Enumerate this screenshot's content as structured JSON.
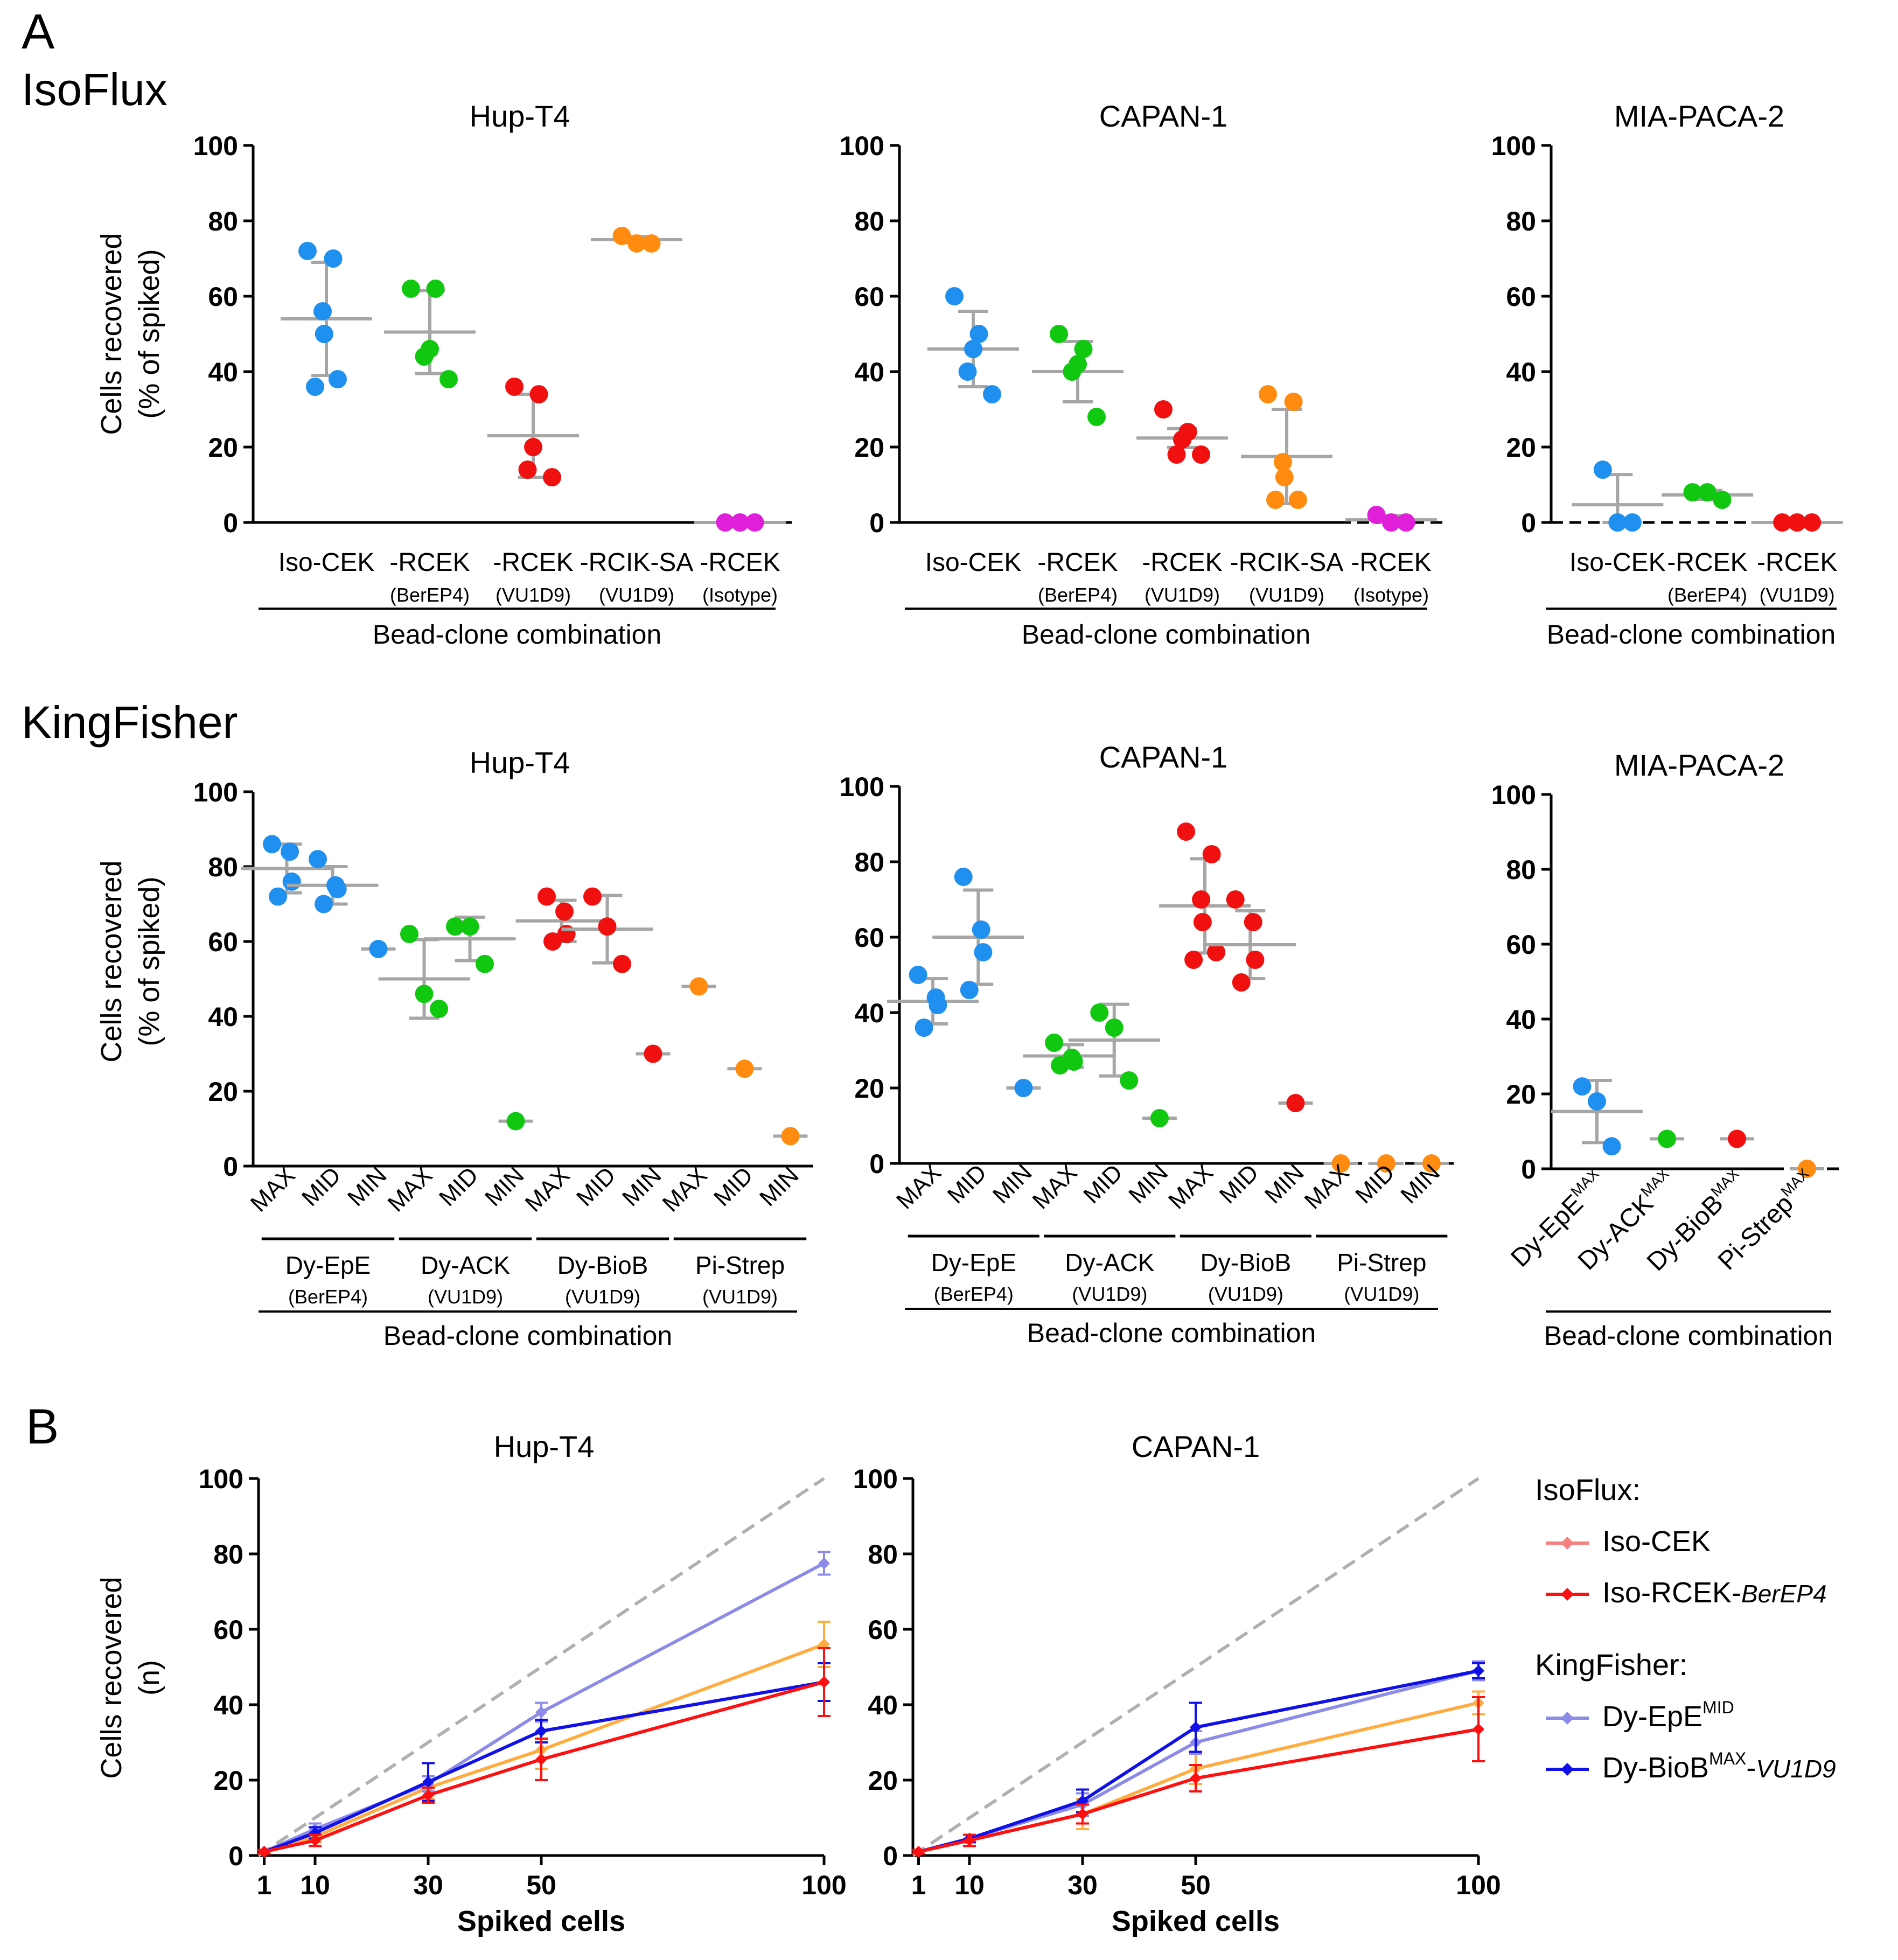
{
  "labels": {
    "panel_a": "A",
    "panel_b": "B",
    "isoflux_title": "IsoFlux",
    "kingfisher_title": "KingFisher",
    "ylabel_a_line1": "Cells recovered",
    "ylabel_a_line2": "(% of spiked)",
    "ylabel_b_line1": "Cells recovered",
    "ylabel_b_line2": "(n)",
    "bead_combo": "Bead-clone combination",
    "spiked_cells": "Spiked cells"
  },
  "colors": {
    "blue": "#1f8ff0",
    "green": "#11c811",
    "red": "#f01010",
    "orange": "#ff8c10",
    "magenta": "#e020d8",
    "gray": "#a6a6a6",
    "isoCEK": "#f58080",
    "isoRCEK": "#ff1010",
    "dyEpE": "#8c8ce8",
    "dyBioB": "#1010e8",
    "orangeLine": "#ffac40"
  },
  "chart_data": [
    {
      "id": "iso-hup",
      "type": "scatter",
      "title": "Hup-T4",
      "ylim": [
        0,
        100
      ],
      "yticks": [
        0,
        20,
        40,
        60,
        80,
        100
      ],
      "group_labels": [
        {
          "main": "Iso-CEK",
          "sub": ""
        },
        {
          "main": "-RCEK",
          "sub": "(BerEP4)"
        },
        {
          "main": "-RCEK",
          "sub": "(VU1D9)"
        },
        {
          "main": "-RCIK-SA",
          "sub": "(VU1D9)"
        },
        {
          "main": "-RCEK",
          "sub": "(Isotype)"
        }
      ],
      "xlabel": "Bead-clone combination",
      "groups": [
        {
          "color": "blue",
          "points": [
            72,
            70,
            56,
            50,
            38,
            36
          ],
          "mean": 54,
          "sd": 15
        },
        {
          "color": "green",
          "points": [
            62,
            62,
            46,
            44,
            38
          ],
          "mean": 50.5,
          "sd": 11
        },
        {
          "color": "red",
          "points": [
            36,
            34,
            20,
            14,
            12
          ],
          "mean": 23,
          "sd": 11
        },
        {
          "color": "orange",
          "points": [
            76,
            74,
            74
          ],
          "mean": 75,
          "sd": 0.8
        },
        {
          "color": "magenta",
          "points": [
            0,
            0,
            0
          ],
          "mean": 0,
          "sd": 0
        }
      ]
    },
    {
      "id": "iso-capan",
      "type": "scatter",
      "title": "CAPAN-1",
      "ylim": [
        0,
        100
      ],
      "yticks": [
        0,
        20,
        40,
        60,
        80,
        100
      ],
      "group_labels": [
        {
          "main": "Iso-CEK",
          "sub": ""
        },
        {
          "main": "-RCEK",
          "sub": "(BerEP4)"
        },
        {
          "main": "-RCEK",
          "sub": "(VU1D9)"
        },
        {
          "main": "-RCIK-SA",
          "sub": "(VU1D9)"
        },
        {
          "main": "-RCEK",
          "sub": "(Isotype)"
        }
      ],
      "xlabel": "Bead-clone combination",
      "groups": [
        {
          "color": "blue",
          "points": [
            60,
            50,
            46,
            40,
            34
          ],
          "mean": 46,
          "sd": 10
        },
        {
          "color": "green",
          "points": [
            50,
            46,
            42,
            40,
            28
          ],
          "mean": 40,
          "sd": 8
        },
        {
          "color": "red",
          "points": [
            30,
            24,
            22,
            18,
            18
          ],
          "mean": 22.4,
          "sd": 2.5
        },
        {
          "color": "orange",
          "points": [
            34,
            32,
            16,
            12,
            6,
            6
          ],
          "mean": 17.5,
          "sd": 12.5
        },
        {
          "color": "magenta",
          "points": [
            2,
            0,
            0
          ],
          "mean": 0.7,
          "sd": 1.1
        }
      ]
    },
    {
      "id": "iso-mia",
      "type": "scatter",
      "title": "MIA-PACA-2",
      "ylim": [
        0,
        100
      ],
      "yticks": [
        0,
        20,
        40,
        60,
        80,
        100
      ],
      "group_labels": [
        {
          "main": "Iso-CEK",
          "sub": ""
        },
        {
          "main": "-RCEK",
          "sub": "(BerEP4)"
        },
        {
          "main": "-RCEK",
          "sub": "(VU1D9)"
        }
      ],
      "xlabel": "Bead-clone combination",
      "groups": [
        {
          "color": "blue",
          "points": [
            14,
            0,
            0
          ],
          "mean": 4.7,
          "sd": 8
        },
        {
          "color": "green",
          "points": [
            8,
            8,
            6
          ],
          "mean": 7.3,
          "sd": 1.2
        },
        {
          "color": "red",
          "points": [
            0,
            0,
            0
          ],
          "mean": 0,
          "sd": 0
        }
      ]
    },
    {
      "id": "kf-hup",
      "type": "scatter",
      "title": "Hup-T4",
      "ylim": [
        0,
        100
      ],
      "yticks": [
        0,
        20,
        40,
        60,
        80,
        100
      ],
      "tick_labels": [
        "MAX",
        "MID",
        "MIN",
        "MAX",
        "MID",
        "MIN",
        "MAX",
        "MID",
        "MIN",
        "MAX",
        "MID",
        "MIN"
      ],
      "bead_groups": [
        {
          "main": "Dy-EpE",
          "sub": "(BerEP4)"
        },
        {
          "main": "Dy-ACK",
          "sub": "(VU1D9)"
        },
        {
          "main": "Dy-BioB",
          "sub": "(VU1D9)"
        },
        {
          "main": "Pi-Strep",
          "sub": "(VU1D9)"
        }
      ],
      "xlabel": "Bead-clone combination",
      "groups": [
        {
          "color": "blue",
          "points": [
            86,
            84,
            76,
            72
          ],
          "mean": 79.5,
          "sd": 6.5
        },
        {
          "color": "blue",
          "points": [
            82,
            75,
            74,
            70
          ],
          "mean": 75,
          "sd": 5
        },
        {
          "color": "blue",
          "points": [
            58
          ],
          "mean": 58,
          "sd": 0
        },
        {
          "color": "green",
          "points": [
            62,
            46,
            42
          ],
          "mean": 50,
          "sd": 10.5
        },
        {
          "color": "green",
          "points": [
            64,
            64,
            54
          ],
          "mean": 60.7,
          "sd": 5.8
        },
        {
          "color": "green",
          "points": [
            12
          ],
          "mean": 12,
          "sd": 0
        },
        {
          "color": "red",
          "points": [
            72,
            68,
            62,
            60
          ],
          "mean": 65.5,
          "sd": 5.5
        },
        {
          "color": "red",
          "points": [
            72,
            64,
            54
          ],
          "mean": 63.3,
          "sd": 9
        },
        {
          "color": "red",
          "points": [
            30
          ],
          "mean": 30,
          "sd": 0
        },
        {
          "color": "orange",
          "points": [
            48
          ],
          "mean": 48,
          "sd": 0
        },
        {
          "color": "orange",
          "points": [
            26
          ],
          "mean": 26,
          "sd": 0
        },
        {
          "color": "orange",
          "points": [
            8
          ],
          "mean": 8,
          "sd": 0
        }
      ]
    },
    {
      "id": "kf-capan",
      "type": "scatter",
      "title": "CAPAN-1",
      "ylim": [
        0,
        100
      ],
      "yticks": [
        0,
        20,
        40,
        60,
        80,
        100
      ],
      "tick_labels": [
        "MAX",
        "MID",
        "MIN",
        "MAX",
        "MID",
        "MIN",
        "MAX",
        "MID",
        "MIN",
        "MAX",
        "MID",
        "MIN"
      ],
      "bead_groups": [
        {
          "main": "Dy-EpE",
          "sub": "(BerEP4)"
        },
        {
          "main": "Dy-ACK",
          "sub": "(VU1D9)"
        },
        {
          "main": "Dy-BioB",
          "sub": "(VU1D9)"
        },
        {
          "main": "Pi-Strep",
          "sub": "(VU1D9)"
        }
      ],
      "xlabel": "Bead-clone combination",
      "groups": [
        {
          "color": "blue",
          "points": [
            50,
            44,
            42,
            36
          ],
          "mean": 43,
          "sd": 6
        },
        {
          "color": "blue",
          "points": [
            76,
            62,
            56,
            46
          ],
          "mean": 60,
          "sd": 12.5
        },
        {
          "color": "blue",
          "points": [
            20
          ],
          "mean": 20,
          "sd": 0
        },
        {
          "color": "green",
          "points": [
            32,
            28,
            27,
            26
          ],
          "mean": 28.5,
          "sd": 3
        },
        {
          "color": "green",
          "points": [
            40,
            36,
            22
          ],
          "mean": 32.7,
          "sd": 9.5
        },
        {
          "color": "green",
          "points": [
            12
          ],
          "mean": 12,
          "sd": 0
        },
        {
          "color": "red",
          "points": [
            88,
            82,
            70,
            64,
            56,
            54
          ],
          "mean": 68.3,
          "sd": 12.5
        },
        {
          "color": "red",
          "points": [
            70,
            64,
            54,
            48
          ],
          "mean": 58,
          "sd": 9
        },
        {
          "color": "red",
          "points": [
            16
          ],
          "mean": 16,
          "sd": 0
        },
        {
          "color": "orange",
          "points": [
            0
          ],
          "mean": 0,
          "sd": 0
        },
        {
          "color": "orange",
          "points": [
            0
          ],
          "mean": 0,
          "sd": 0
        },
        {
          "color": "orange",
          "points": [
            0
          ],
          "mean": 0,
          "sd": 0
        }
      ]
    },
    {
      "id": "kf-mia",
      "type": "scatter",
      "title": "MIA-PACA-2",
      "ylim": [
        0,
        100
      ],
      "yticks": [
        0,
        20,
        40,
        60,
        80,
        100
      ],
      "tick_labels": [
        {
          "main": "Dy-EpE",
          "sup": "MAX"
        },
        {
          "main": "Dy-ACK",
          "sup": "MAX"
        },
        {
          "main": "Dy-BioB",
          "sup": "MAX"
        },
        {
          "main": "Pi-Strep",
          "sup": "MAX"
        }
      ],
      "xlabel": "Bead-clone combination",
      "groups": [
        {
          "color": "blue",
          "points": [
            22,
            18,
            6
          ],
          "mean": 15.3,
          "sd": 8.3
        },
        {
          "color": "green",
          "points": [
            8
          ],
          "mean": 8,
          "sd": 0
        },
        {
          "color": "red",
          "points": [
            8
          ],
          "mean": 8,
          "sd": 0
        },
        {
          "color": "orange",
          "points": [
            0
          ],
          "mean": 0,
          "sd": 0
        }
      ]
    },
    {
      "id": "b-hup",
      "type": "line",
      "title": "Hup-T4",
      "xlabel": "Spiked cells",
      "ylabel": "Cells recovered (n)",
      "ylim": [
        0,
        100
      ],
      "yticks": [
        0,
        20,
        40,
        60,
        80,
        100
      ],
      "xlim": [
        0,
        100
      ],
      "xticks": [
        1,
        10,
        30,
        50,
        100
      ],
      "reference_line": [
        [
          0,
          0
        ],
        [
          100,
          100
        ]
      ],
      "series": [
        {
          "name": "orange",
          "color": "orangeLine",
          "x": [
            1,
            10,
            30,
            50,
            100
          ],
          "y": [
            1,
            5,
            18,
            28,
            56
          ],
          "err": [
            0.5,
            1.5,
            3,
            5,
            6
          ]
        },
        {
          "name": "Dy-EpE MID",
          "color": "dyEpE",
          "x": [
            1,
            10,
            30,
            50,
            100
          ],
          "y": [
            1,
            7,
            19,
            38,
            77.5
          ],
          "err": [
            0.5,
            1.5,
            2,
            2.5,
            3
          ]
        },
        {
          "name": "Dy-BioB MAX-VU1D9",
          "color": "dyBioB",
          "x": [
            1,
            10,
            30,
            50,
            100
          ],
          "y": [
            1,
            6,
            19.5,
            33,
            46
          ],
          "err": [
            0.5,
            1.5,
            5,
            3,
            5
          ]
        },
        {
          "name": "Iso-RCEK-BerEP4",
          "color": "isoRCEK",
          "x": [
            1,
            10,
            30,
            50,
            100
          ],
          "y": [
            1,
            4,
            16,
            25.5,
            46
          ],
          "err": [
            0.5,
            1.5,
            2,
            5.5,
            9
          ]
        }
      ]
    },
    {
      "id": "b-capan",
      "type": "line",
      "title": "CAPAN-1",
      "xlabel": "Spiked cells",
      "ylabel": "Cells recovered (n)",
      "ylim": [
        0,
        100
      ],
      "yticks": [
        0,
        20,
        40,
        60,
        80,
        100
      ],
      "xlim": [
        0,
        100
      ],
      "xticks": [
        1,
        10,
        30,
        50,
        100
      ],
      "reference_line": [
        [
          0,
          0
        ],
        [
          100,
          100
        ]
      ],
      "series": [
        {
          "name": "orange",
          "color": "orangeLine",
          "x": [
            1,
            10,
            30,
            50,
            100
          ],
          "y": [
            1,
            4,
            11,
            23,
            40.5
          ],
          "err": [
            0.5,
            1.5,
            4,
            4,
            3
          ]
        },
        {
          "name": "Dy-EpE MID",
          "color": "dyEpE",
          "x": [
            1,
            10,
            30,
            50,
            100
          ],
          "y": [
            1,
            4.5,
            13.5,
            30,
            49
          ],
          "err": [
            0.5,
            1,
            3,
            3,
            2.5
          ]
        },
        {
          "name": "Dy-BioB MAX-VU1D9",
          "color": "dyBioB",
          "x": [
            1,
            10,
            30,
            50,
            100
          ],
          "y": [
            1,
            4.5,
            14.5,
            34,
            49
          ],
          "err": [
            0.5,
            1,
            3,
            6.5,
            2
          ]
        },
        {
          "name": "Iso-RCEK-BerEP4",
          "color": "isoRCEK",
          "x": [
            1,
            10,
            30,
            50,
            100
          ],
          "y": [
            1,
            4,
            11,
            20.5,
            33.5
          ],
          "err": [
            0.5,
            1.5,
            2.5,
            3.5,
            8.5
          ]
        }
      ]
    }
  ],
  "legend": {
    "isoflux_header": "IsoFlux:",
    "kingfisher_header": "KingFisher:",
    "entries": [
      {
        "label": "Iso-CEK",
        "color": "isoCEK"
      },
      {
        "label": "Iso-RCEK-",
        "italic": "BerEP4",
        "color": "isoRCEK"
      },
      {
        "label": "Dy-EpE",
        "sup": "MID",
        "color": "dyEpE"
      },
      {
        "label": "Dy-BioB",
        "sup": "MAX",
        "tail": "-",
        "italic": "VU1D9",
        "color": "dyBioB"
      }
    ]
  }
}
